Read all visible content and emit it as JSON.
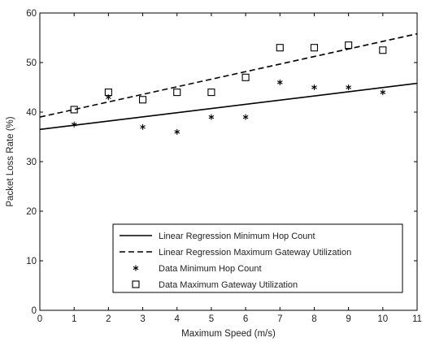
{
  "chart_data": {
    "type": "scatter",
    "xlabel": "Maximum Speed (m/s)",
    "ylabel": "Packet Loss Rate (%)",
    "xlim": [
      0,
      11
    ],
    "ylim": [
      0,
      60
    ],
    "xticks": [
      0,
      1,
      2,
      3,
      4,
      5,
      6,
      7,
      8,
      9,
      10,
      11
    ],
    "yticks": [
      0,
      10,
      20,
      30,
      40,
      50,
      60
    ],
    "grid": false,
    "legend_position": "bottom-right",
    "series": [
      {
        "name": "Linear Regression Minimum Hop Count",
        "kind": "line",
        "style": "solid",
        "color": "#000000",
        "x": [
          0,
          11
        ],
        "y": [
          36.5,
          45.8
        ]
      },
      {
        "name": "Linear Regression Maximum Gateway Utilization",
        "kind": "line",
        "style": "dashed",
        "color": "#000000",
        "x": [
          0,
          11
        ],
        "y": [
          39.0,
          55.8
        ]
      },
      {
        "name": "Data Minimum Hop Count",
        "kind": "points",
        "marker": "asterisk",
        "color": "#000000",
        "x": [
          1,
          2,
          3,
          4,
          5,
          6,
          7,
          8,
          9,
          10
        ],
        "y": [
          37.5,
          43,
          37,
          36,
          39,
          39,
          46,
          45,
          45,
          44
        ]
      },
      {
        "name": "Data Maximum Gateway Utilization",
        "kind": "points",
        "marker": "square",
        "color": "#000000",
        "x": [
          1,
          2,
          3,
          4,
          5,
          6,
          7,
          8,
          9,
          10
        ],
        "y": [
          40.5,
          44,
          42.5,
          44,
          44,
          47,
          53,
          53,
          53.5,
          52.5
        ]
      }
    ]
  }
}
